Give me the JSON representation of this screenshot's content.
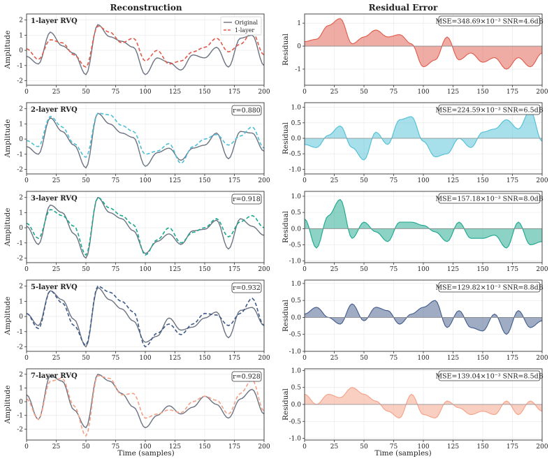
{
  "titles": {
    "left": "Reconstruction",
    "right": "Residual Error"
  },
  "axes": {
    "xlabel": "Time (samples)",
    "ylabel_left": "Amplitude",
    "ylabel_right": "Residual",
    "x_ticks": [
      "0",
      "25",
      "50",
      "75",
      "100",
      "125",
      "150",
      "175",
      "200"
    ]
  },
  "legend": {
    "original": "Original",
    "reconstruction": "1-layer"
  },
  "colors": {
    "original": "#6b7280",
    "layers": [
      "#e05a4a",
      "#4fbfd6",
      "#1aa68c",
      "#3f5a8a",
      "#f4a086"
    ]
  },
  "chart_data": [
    {
      "type": "line",
      "title": "1-layer RVQ",
      "correlation": "",
      "ylim": [
        -2.3,
        2.4
      ],
      "y_ticks": [
        "-2",
        "-1",
        "0",
        "1",
        "2"
      ],
      "x": [
        0,
        10,
        20,
        30,
        40,
        50,
        60,
        70,
        80,
        90,
        100,
        110,
        120,
        130,
        140,
        150,
        160,
        170,
        180,
        190,
        200
      ],
      "series": [
        {
          "name": "Original",
          "values": [
            -0.4,
            -0.9,
            1.2,
            0.3,
            -0.2,
            -1.6,
            1.7,
            0.9,
            0.6,
            0.2,
            -1.6,
            -0.5,
            -0.8,
            -1.3,
            -0.3,
            -0.5,
            0.2,
            -1.1,
            0.8,
            1.0,
            -1.0
          ]
        },
        {
          "name": "1-layer",
          "values": [
            0.1,
            -0.6,
            0.7,
            0.5,
            -0.3,
            -1.1,
            1.6,
            1.2,
            0.5,
            0.8,
            -0.7,
            0.0,
            -0.9,
            -0.7,
            -0.1,
            0.2,
            0.8,
            -0.1,
            0.4,
            1.2,
            -0.3
          ]
        }
      ]
    },
    {
      "type": "line",
      "title": "2-layer RVQ",
      "correlation": "r=0.880",
      "ylim": [
        -2.3,
        2.4
      ],
      "y_ticks": [
        "-2",
        "-1",
        "0",
        "1",
        "2"
      ],
      "x": [
        0,
        10,
        20,
        30,
        40,
        50,
        60,
        70,
        80,
        90,
        100,
        110,
        120,
        130,
        140,
        150,
        160,
        170,
        180,
        190,
        200
      ],
      "series": [
        {
          "name": "Original",
          "values": [
            -0.5,
            -1.0,
            1.4,
            0.5,
            -0.4,
            -1.9,
            1.7,
            1.0,
            0.4,
            0.1,
            -1.8,
            -0.9,
            -0.6,
            -1.4,
            -0.6,
            -0.4,
            0.4,
            -1.3,
            0.5,
            0.4,
            -0.8
          ]
        },
        {
          "name": "2-layer",
          "values": [
            -0.1,
            -0.5,
            1.5,
            0.8,
            -0.3,
            -1.2,
            1.7,
            1.6,
            0.9,
            0.5,
            -1.0,
            -0.8,
            -0.3,
            -1.6,
            -0.5,
            0.0,
            0.3,
            -0.4,
            0.2,
            0.8,
            -0.6
          ]
        }
      ]
    },
    {
      "type": "line",
      "title": "3-layer RVQ",
      "correlation": "r=0.918",
      "ylim": [
        -2.3,
        2.4
      ],
      "y_ticks": [
        "-2",
        "-1",
        "0",
        "1",
        "2"
      ],
      "x": [
        0,
        10,
        20,
        30,
        40,
        50,
        60,
        70,
        80,
        90,
        100,
        110,
        120,
        130,
        140,
        150,
        160,
        170,
        180,
        190,
        200
      ],
      "series": [
        {
          "name": "Original",
          "values": [
            0.1,
            -1.1,
            1.5,
            1.0,
            -0.4,
            -2.0,
            2.0,
            1.0,
            0.6,
            -0.2,
            -1.7,
            -0.9,
            -0.4,
            -1.1,
            -0.2,
            -0.1,
            0.5,
            -1.4,
            0.6,
            0.1,
            -0.5
          ]
        },
        {
          "name": "3-layer",
          "values": [
            0.3,
            -0.7,
            1.2,
            0.8,
            0.1,
            -1.8,
            2.0,
            1.3,
            0.8,
            0.2,
            -1.8,
            -0.8,
            0.0,
            -1.0,
            -0.3,
            0.0,
            0.6,
            -0.6,
            0.4,
            0.8,
            0.0
          ]
        }
      ]
    },
    {
      "type": "line",
      "title": "5-layer RVQ",
      "correlation": "r=0.932",
      "ylim": [
        -2.3,
        2.4
      ],
      "y_ticks": [
        "-2",
        "-1",
        "0",
        "1",
        "2"
      ],
      "x": [
        0,
        10,
        20,
        30,
        40,
        50,
        60,
        70,
        80,
        90,
        100,
        110,
        120,
        130,
        140,
        150,
        160,
        170,
        180,
        190,
        200
      ],
      "series": [
        {
          "name": "Original",
          "values": [
            0.2,
            -0.6,
            1.7,
            1.1,
            -0.2,
            -2.0,
            1.9,
            1.1,
            0.5,
            -0.3,
            -1.7,
            -1.3,
            -0.1,
            -0.9,
            -0.7,
            -0.1,
            0.3,
            -1.4,
            0.4,
            0.6,
            -0.6
          ]
        },
        {
          "name": "5-layer",
          "values": [
            0.2,
            -0.8,
            1.7,
            0.9,
            -0.6,
            -1.9,
            2.0,
            1.6,
            1.0,
            0.3,
            -2.0,
            -1.1,
            -0.5,
            -1.2,
            -0.5,
            0.2,
            0.1,
            -0.6,
            0.2,
            1.2,
            -0.6
          ]
        }
      ]
    },
    {
      "type": "line",
      "title": "7-layer RVQ",
      "correlation": "r=0.928",
      "ylim": [
        -2.8,
        2.4
      ],
      "y_ticks": [
        "-2",
        "-1",
        "0",
        "1",
        "2"
      ],
      "x": [
        0,
        10,
        20,
        30,
        40,
        50,
        60,
        70,
        80,
        90,
        100,
        110,
        120,
        130,
        140,
        150,
        160,
        170,
        180,
        190,
        200
      ],
      "series": [
        {
          "name": "Original",
          "values": [
            0.5,
            -1.3,
            1.9,
            1.5,
            -0.6,
            -1.9,
            2.0,
            1.5,
            0.6,
            -0.4,
            -1.9,
            -1.0,
            -0.3,
            -0.9,
            -0.4,
            0.4,
            -0.2,
            -1.2,
            0.2,
            0.9,
            -0.9
          ]
        },
        {
          "name": "7-layer",
          "values": [
            0.2,
            -1.3,
            1.5,
            1.7,
            -0.3,
            -2.5,
            1.9,
            1.7,
            0.5,
            0.6,
            -1.2,
            -0.9,
            -0.6,
            -0.8,
            0.0,
            0.4,
            0.1,
            -0.9,
            0.6,
            1.6,
            -0.7
          ]
        }
      ]
    }
  ],
  "residuals": [
    {
      "stats": "MSE=348.69×10⁻³  SNR=4.6dB",
      "ylim": [
        -1.7,
        1.4
      ],
      "y_ticks": [
        "-1",
        "0",
        "1"
      ],
      "x": [
        0,
        10,
        20,
        30,
        40,
        50,
        60,
        70,
        80,
        90,
        100,
        110,
        120,
        130,
        140,
        150,
        160,
        170,
        180,
        190,
        200
      ],
      "values": [
        0.2,
        0.3,
        0.9,
        1.2,
        0.1,
        0.4,
        0.7,
        0.4,
        0.5,
        0.1,
        -0.9,
        -0.6,
        0.4,
        -0.6,
        -0.3,
        -0.7,
        -0.5,
        -1.0,
        -0.5,
        -0.9,
        -0.3
      ]
    },
    {
      "stats": "MSE=224.59×10⁻³  SNR=6.5dB",
      "ylim": [
        -1.15,
        1.15
      ],
      "y_ticks": [
        "-1.0",
        "-0.5",
        "0.0",
        "0.5",
        "1.0"
      ],
      "x": [
        0,
        10,
        20,
        30,
        40,
        50,
        60,
        70,
        80,
        90,
        100,
        110,
        120,
        130,
        140,
        150,
        160,
        170,
        180,
        190,
        200
      ],
      "values": [
        -0.2,
        -0.3,
        0.1,
        0.4,
        -0.3,
        -0.7,
        0.2,
        -0.2,
        0.6,
        0.7,
        -0.1,
        -0.6,
        -0.5,
        0.0,
        -0.3,
        0.2,
        0.3,
        0.6,
        0.3,
        0.9,
        -0.1
      ]
    },
    {
      "stats": "MSE=157.18×10⁻³  SNR=8.0dB",
      "ylim": [
        -1.05,
        1.15
      ],
      "y_ticks": [
        "-1.0",
        "-0.5",
        "0.0",
        "0.5",
        "1.0"
      ],
      "x": [
        0,
        10,
        20,
        30,
        40,
        50,
        60,
        70,
        80,
        90,
        100,
        110,
        120,
        130,
        140,
        150,
        160,
        170,
        180,
        190,
        200
      ],
      "values": [
        0.3,
        -0.6,
        0.4,
        0.9,
        -0.3,
        0.2,
        -0.1,
        -0.4,
        0.2,
        0.2,
        0.1,
        -0.1,
        -0.4,
        0.2,
        -0.3,
        -0.3,
        -0.2,
        -0.6,
        0.2,
        -0.5,
        -0.4
      ]
    },
    {
      "stats": "MSE=129.82×10⁻³  SNR=8.8dB",
      "ylim": [
        -1.0,
        1.1
      ],
      "y_ticks": [
        "-1.0",
        "-0.5",
        "0.0",
        "0.5",
        "1.0"
      ],
      "x": [
        0,
        10,
        20,
        30,
        40,
        50,
        60,
        70,
        80,
        90,
        100,
        110,
        120,
        130,
        140,
        150,
        160,
        170,
        180,
        190,
        200
      ],
      "values": [
        0.1,
        0.3,
        0.0,
        -0.2,
        0.4,
        -0.1,
        0.3,
        0.2,
        -0.2,
        0.1,
        0.3,
        0.5,
        -0.3,
        0.2,
        -0.3,
        -0.4,
        0.1,
        -0.5,
        0.2,
        -0.3,
        -0.1
      ]
    },
    {
      "stats": "MSE=139.04×10⁻³  SNR=8.5dB",
      "ylim": [
        -1.05,
        1.05
      ],
      "y_ticks": [
        "-1.0",
        "-0.5",
        "0.0",
        "0.5",
        "1.0"
      ],
      "x": [
        0,
        10,
        20,
        30,
        40,
        50,
        60,
        70,
        80,
        90,
        100,
        110,
        120,
        130,
        140,
        150,
        160,
        170,
        180,
        190,
        200
      ],
      "values": [
        0.3,
        0.0,
        0.3,
        0.2,
        0.5,
        0.3,
        0.1,
        -0.2,
        -0.4,
        0.3,
        -0.3,
        -0.4,
        0.1,
        -0.1,
        -0.3,
        -0.2,
        -0.3,
        0.1,
        -0.3,
        0.1,
        -0.2
      ]
    }
  ]
}
